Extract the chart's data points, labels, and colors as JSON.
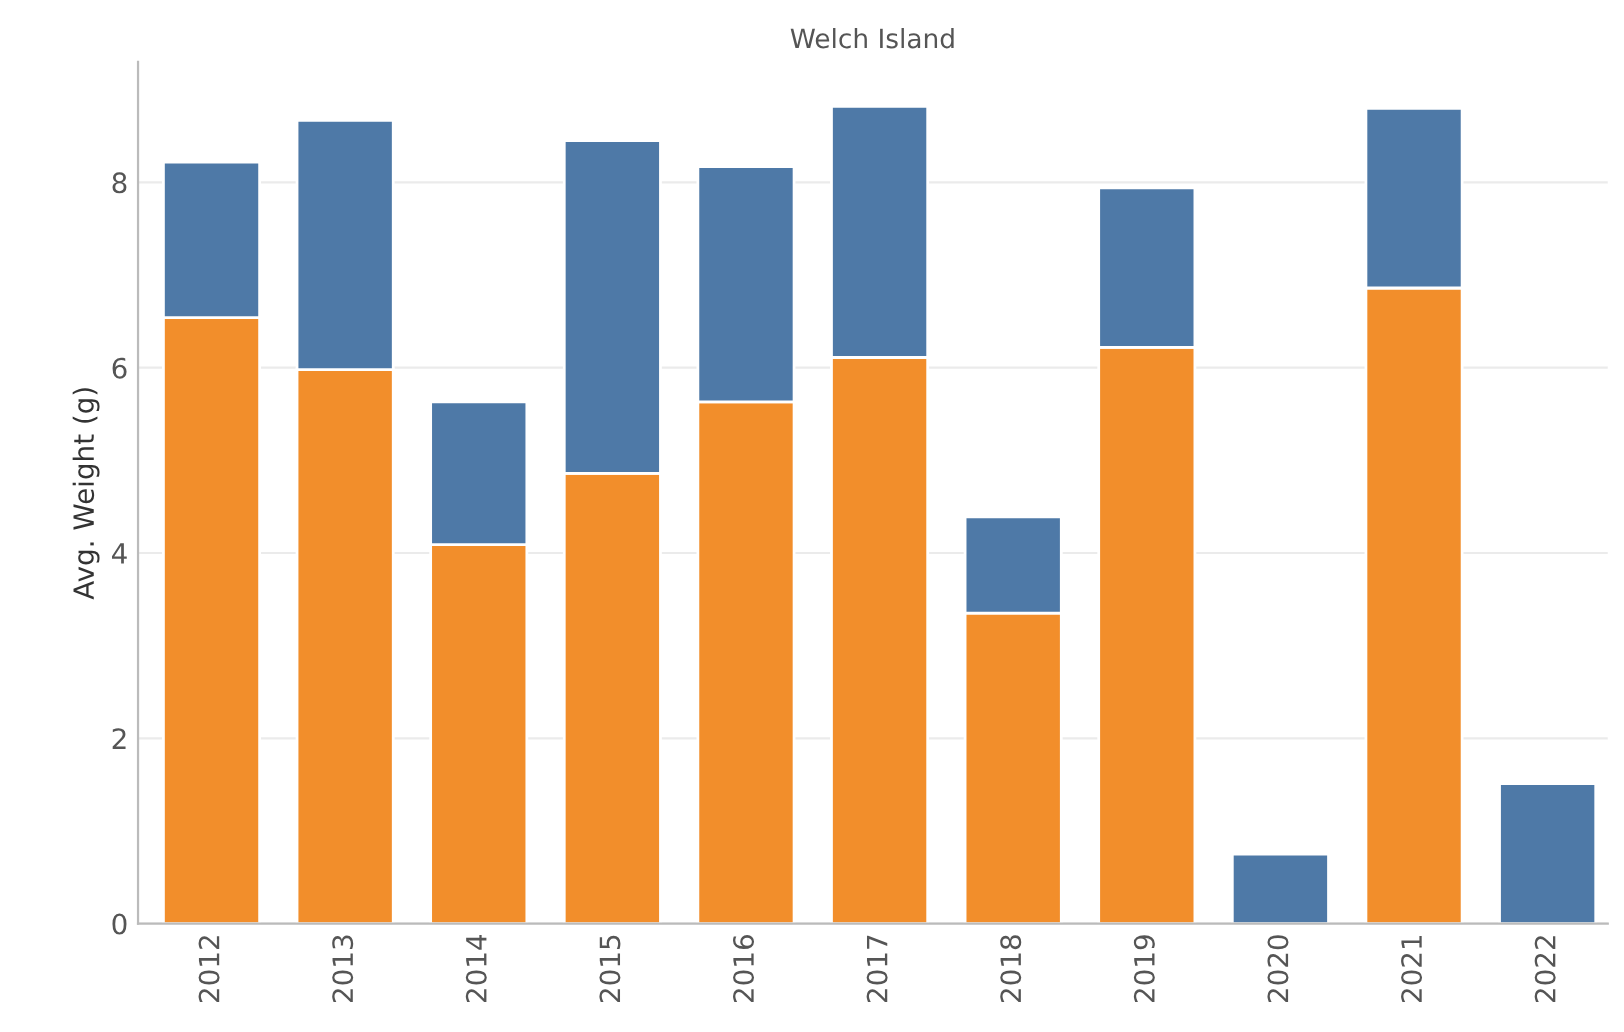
{
  "chart_data": {
    "type": "bar",
    "title": "Welch Island",
    "ylabel": "Avg. Weight (g)",
    "categories": [
      "2012",
      "2013",
      "2014",
      "2015",
      "2016",
      "2017",
      "2018",
      "2019",
      "2020",
      "2021",
      "2022"
    ],
    "stacked": true,
    "series": [
      {
        "color": "#f28e2b",
        "values": [
          6.54,
          5.98,
          4.09,
          4.86,
          5.63,
          6.11,
          3.35,
          6.22,
          null,
          6.86,
          null
        ]
      },
      {
        "color": "#4e79a7",
        "values": [
          1.68,
          2.69,
          1.54,
          3.59,
          2.54,
          2.71,
          1.04,
          1.72,
          0.75,
          1.94,
          1.51
        ]
      }
    ],
    "ylim": [
      0,
      9.3
    ],
    "yticks": [
      0,
      2,
      4,
      6,
      8
    ],
    "grid": "y",
    "legend": false
  }
}
